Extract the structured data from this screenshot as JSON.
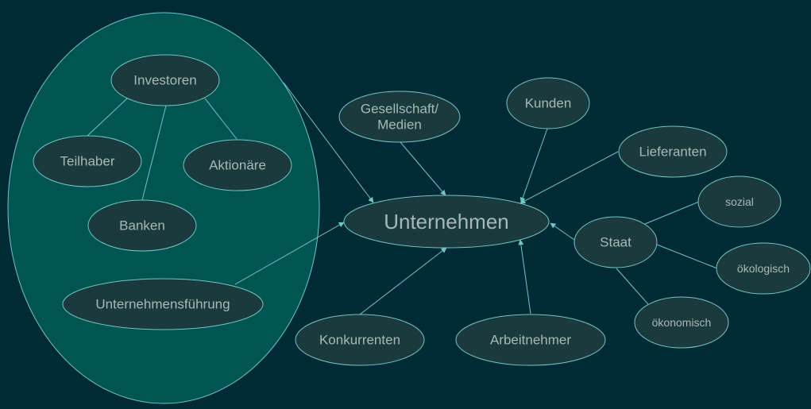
{
  "diagram": {
    "colors": {
      "background": "#012a37",
      "group_fill": "#005452",
      "node_fill": "#1b3a3e",
      "stroke": "#70c6c6",
      "text": "#a8b8b8"
    },
    "center": "Unternehmen",
    "nodes": {
      "investoren": "Investoren",
      "teilhaber": "Teilhaber",
      "aktionaere": "Aktionäre",
      "banken": "Banken",
      "unternehmensfuehrung": "Unternehmensführung",
      "gesellschaft_line1": "Gesellschaft/",
      "gesellschaft_line2": "Medien",
      "kunden": "Kunden",
      "lieferanten": "Lieferanten",
      "staat": "Staat",
      "sozial": "sozial",
      "oekologisch": "ökologisch",
      "oekonomisch": "ökonomisch",
      "konkurrenten": "Konkurrenten",
      "arbeitnehmer": "Arbeitnehmer"
    }
  }
}
